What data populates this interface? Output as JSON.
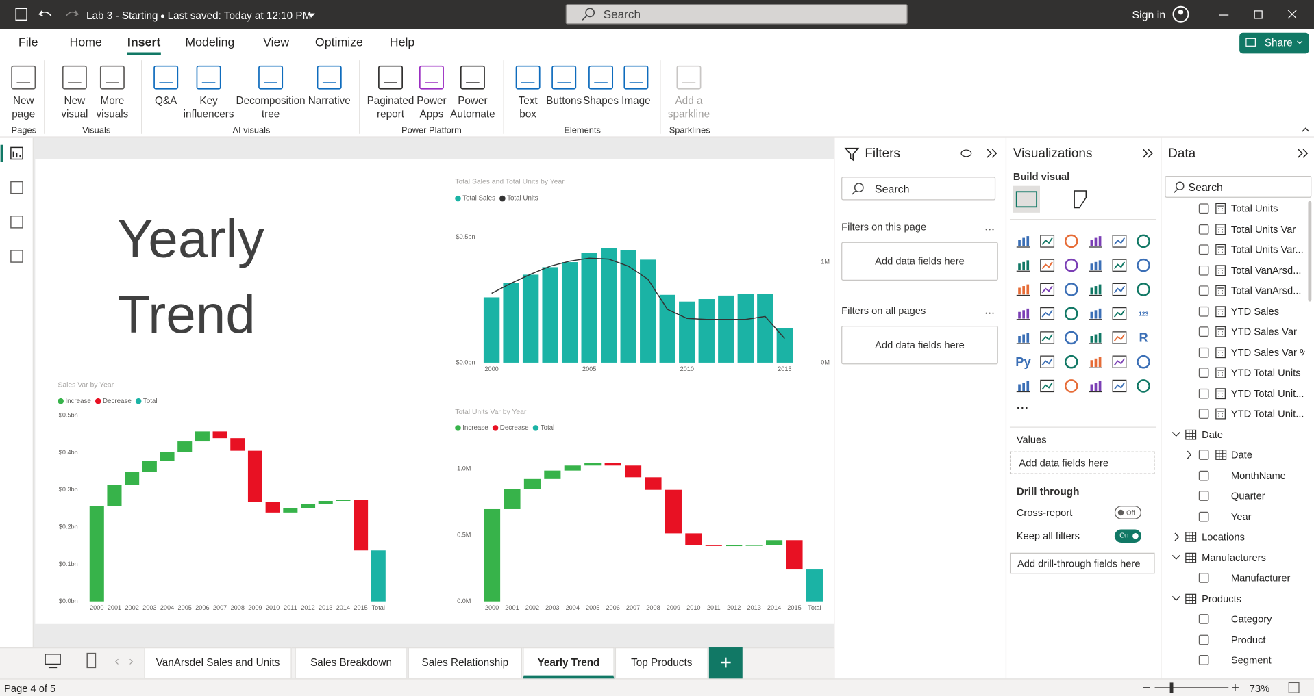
{
  "title_bar": {
    "file": "Lab 3 - Starting",
    "saved": "Last saved: Today at 12:10 PM",
    "search": "Search",
    "sign_in": "Sign in"
  },
  "menu": {
    "items": [
      "File",
      "Home",
      "Insert",
      "Modeling",
      "View",
      "Optimize",
      "Help"
    ],
    "active": 2,
    "share": "Share"
  },
  "ribbon": [
    {
      "group": "Pages",
      "buttons": [
        "New page"
      ]
    },
    {
      "group": "Visuals",
      "buttons": [
        "New visual",
        "More visuals"
      ]
    },
    {
      "group": "AI visuals",
      "buttons": [
        "Q&A",
        "Key influencers",
        "Decomposition tree",
        "Narrative"
      ]
    },
    {
      "group": "Power Platform",
      "buttons": [
        "Paginated report",
        "Power Apps",
        "Power Automate"
      ]
    },
    {
      "group": "Elements",
      "buttons": [
        "Text box",
        "Buttons",
        "Shapes",
        "Image"
      ]
    },
    {
      "group": "Sparklines",
      "buttons": [
        "Add a sparkline"
      ],
      "disabled": true
    }
  ],
  "canvas": {
    "heading": "Yearly Trend",
    "charts": [
      {
        "type": "bar_line",
        "title": "Total Sales and Total Units by Year",
        "categories": [
          "2000",
          null,
          null,
          null,
          null,
          "2005",
          null,
          null,
          null,
          null,
          "2010",
          null,
          null,
          null,
          null,
          "2015"
        ],
        "series": [
          {
            "name": "Total Sales",
            "color": "#1bb3a5",
            "values": [
              0.26,
              0.317,
              0.35,
              0.38,
              0.4,
              0.437,
              0.457,
              0.447,
              0.41,
              0.27,
              0.243,
              0.253,
              0.267,
              0.273,
              0.273,
              0.137
            ]
          },
          {
            "name": "Total Units",
            "color": "#333333",
            "axis": "y2",
            "values": [
              0.69,
              0.79,
              0.88,
              0.96,
              1.01,
              1.04,
              1.03,
              0.96,
              0.83,
              0.53,
              0.44,
              0.43,
              0.43,
              0.43,
              0.46,
              0.24
            ]
          }
        ],
        "ylim": [
          0,
          0.5
        ],
        "yticks": [
          {
            "value": 0,
            "label": "$0.0bn"
          },
          {
            "value": 0.5,
            "label": "$0.5bn"
          }
        ],
        "y2lim": [
          0,
          1.25
        ],
        "y2ticks": [
          {
            "value": 0,
            "label": "0M"
          },
          {
            "value": 1,
            "label": "1M"
          }
        ]
      },
      {
        "type": "waterfall",
        "title": "Sales Var by Year",
        "categories": [
          "2000",
          "2001",
          "2002",
          "2003",
          "2004",
          "2005",
          "2006",
          "2007",
          "2008",
          "2009",
          "2010",
          "2011",
          "2012",
          "2013",
          "2014",
          "2015",
          "Total"
        ],
        "values": [
          0.257,
          0.056,
          0.036,
          0.029,
          0.023,
          0.029,
          0.027,
          -0.018,
          -0.034,
          -0.137,
          -0.029,
          0.011,
          0.011,
          0.009,
          0.003,
          -0.136,
          0.137
        ],
        "total_last": true,
        "legend": [
          {
            "name": "Increase",
            "color": "#37b34a"
          },
          {
            "name": "Decrease",
            "color": "#e81123"
          },
          {
            "name": "Total",
            "color": "#1bb3a5"
          }
        ],
        "ylim": [
          0,
          0.5
        ],
        "yticks": [
          {
            "value": 0,
            "label": "$0.0bn"
          },
          {
            "value": 0.1,
            "label": "$0.1bn"
          },
          {
            "value": 0.2,
            "label": "$0.2bn"
          },
          {
            "value": 0.3,
            "label": "$0.3bn"
          },
          {
            "value": 0.4,
            "label": "$0.4bn"
          },
          {
            "value": 0.5,
            "label": "$0.5bn"
          }
        ]
      },
      {
        "type": "waterfall",
        "title": "Total Units Var by Year",
        "categories": [
          "2000",
          "2001",
          "2002",
          "2003",
          "2004",
          "2005",
          "2006",
          "2007",
          "2008",
          "2009",
          "2010",
          "2011",
          "2012",
          "2013",
          "2014",
          "2015",
          "Total"
        ],
        "values": [
          0.696,
          0.152,
          0.076,
          0.063,
          0.038,
          0.019,
          -0.019,
          -0.088,
          -0.095,
          -0.329,
          -0.089,
          -0.002,
          0.001,
          0.002,
          0.037,
          -0.221,
          0.241
        ],
        "total_last": true,
        "legend": [
          {
            "name": "Increase",
            "color": "#37b34a"
          },
          {
            "name": "Decrease",
            "color": "#e81123"
          },
          {
            "name": "Total",
            "color": "#1bb3a5"
          }
        ],
        "ylim": [
          0,
          1.1
        ],
        "yticks": [
          {
            "value": 0,
            "label": "0.0M"
          },
          {
            "value": 0.5,
            "label": "0.5M"
          },
          {
            "value": 1,
            "label": "1.0M"
          }
        ]
      }
    ]
  },
  "filters": {
    "title": "Filters",
    "search": "Search",
    "on_page": "Filters on this page",
    "on_all": "Filters on all pages",
    "add": "Add data fields here"
  },
  "visualizations": {
    "title": "Visualizations",
    "build": "Build visual",
    "glyphs": {
      "kpi": "123",
      "r": "R",
      "py": "Py"
    },
    "values": "Values",
    "add_values": "Add data fields here",
    "drill": "Drill through",
    "cross": "Cross-report",
    "cross_state": "Off",
    "keep": "Keep all filters",
    "keep_state": "On",
    "add_drill": "Add drill-through fields here"
  },
  "data_pane": {
    "title": "Data",
    "search": "Search",
    "fields": [
      {
        "label": "Total Units",
        "kind": "measure"
      },
      {
        "label": "Total Units Var",
        "kind": "measure"
      },
      {
        "label": "Total Units Var...",
        "kind": "measure"
      },
      {
        "label": "Total VanArsd...",
        "kind": "measure"
      },
      {
        "label": "Total VanArsd...",
        "kind": "measure"
      },
      {
        "label": "YTD Sales",
        "kind": "measure"
      },
      {
        "label": "YTD Sales Var",
        "kind": "measure"
      },
      {
        "label": "YTD Sales Var %",
        "kind": "measure"
      },
      {
        "label": "YTD Total Units",
        "kind": "measure"
      },
      {
        "label": "YTD Total Unit...",
        "kind": "measure"
      },
      {
        "label": "YTD Total Unit...",
        "kind": "measure"
      },
      {
        "label": "Date",
        "kind": "table",
        "expanded": true
      },
      {
        "label": "Date",
        "kind": "hierarchy"
      },
      {
        "label": "MonthName",
        "kind": "column"
      },
      {
        "label": "Quarter",
        "kind": "column"
      },
      {
        "label": "Year",
        "kind": "column"
      },
      {
        "label": "Locations",
        "kind": "table",
        "expanded": false
      },
      {
        "label": "Manufacturers",
        "kind": "table",
        "expanded": true
      },
      {
        "label": "Manufacturer",
        "kind": "column"
      },
      {
        "label": "Products",
        "kind": "table",
        "expanded": true
      },
      {
        "label": "Category",
        "kind": "column"
      },
      {
        "label": "Product",
        "kind": "column"
      },
      {
        "label": "Segment",
        "kind": "column"
      }
    ]
  },
  "tabs": {
    "items": [
      "VanArsdel Sales and Units",
      "Sales Breakdown",
      "Sales Relationship",
      "Yearly Trend",
      "Top Products"
    ],
    "active": 3
  },
  "status": {
    "page": "Page 4 of 5",
    "zoom": "73%"
  }
}
